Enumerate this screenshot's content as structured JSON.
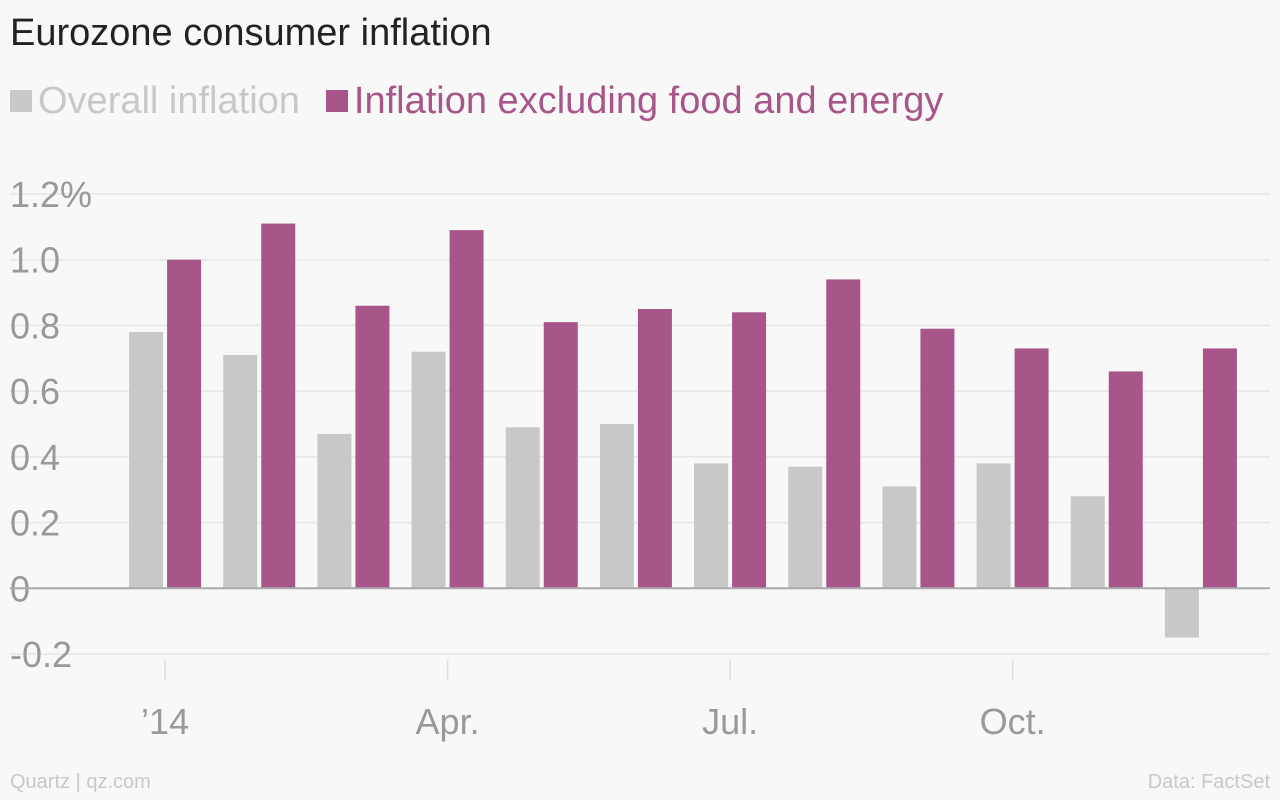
{
  "chart_data": {
    "type": "bar",
    "title": "Eurozone consumer inflation",
    "categories": [
      "Jan 2014",
      "Feb 2014",
      "Mar 2014",
      "Apr 2014",
      "May 2014",
      "Jun 2014",
      "Jul 2014",
      "Aug 2014",
      "Sep 2014",
      "Oct 2014",
      "Nov 2014",
      "Dec 2014"
    ],
    "x_tick_labels": [
      {
        "category": "Jan 2014",
        "label": "’14"
      },
      {
        "category": "Apr 2014",
        "label": "Apr."
      },
      {
        "category": "Jul 2014",
        "label": "Jul."
      },
      {
        "category": "Oct 2014",
        "label": "Oct."
      }
    ],
    "series": [
      {
        "name": "Overall inflation",
        "color": "#c8c8c8",
        "values": [
          0.78,
          0.71,
          0.47,
          0.72,
          0.49,
          0.5,
          0.38,
          0.37,
          0.31,
          0.38,
          0.28,
          -0.15
        ]
      },
      {
        "name": "Inflation excluding food and energy",
        "color": "#a8568a",
        "values": [
          1.0,
          1.11,
          0.86,
          1.09,
          0.81,
          0.85,
          0.84,
          0.94,
          0.79,
          0.73,
          0.66,
          0.73
        ]
      }
    ],
    "ylim": [
      -0.2,
      1.2
    ],
    "y_ticks": [
      {
        "value": 1.2,
        "label": "1.2%"
      },
      {
        "value": 1.0,
        "label": "1.0"
      },
      {
        "value": 0.8,
        "label": "0.8"
      },
      {
        "value": 0.6,
        "label": "0.6"
      },
      {
        "value": 0.4,
        "label": "0.4"
      },
      {
        "value": 0.2,
        "label": "0.2"
      },
      {
        "value": 0,
        "label": "0"
      },
      {
        "value": -0.2,
        "label": "-0.2"
      }
    ],
    "xlabel": "",
    "ylabel": "",
    "grid": true,
    "legend_position": "top-left"
  },
  "footer": {
    "source_left": "Quartz | qz.com",
    "source_right": "Data: FactSet"
  },
  "colors": {
    "tick_label": "#999999",
    "gridline": "#e6e6e6",
    "zero_line": "#aaaaaa"
  }
}
